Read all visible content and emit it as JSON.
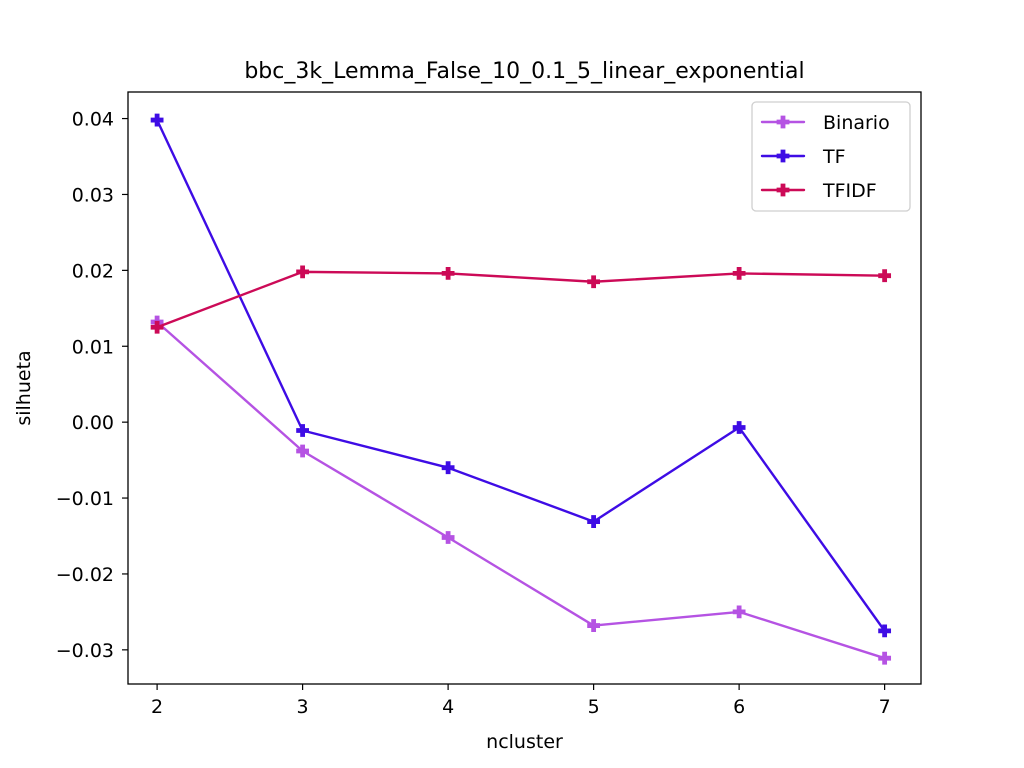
{
  "chart_data": {
    "type": "line",
    "title": "bbc_3k_Lemma_False_10_0.1_5_linear_exponential",
    "xlabel": "ncluster",
    "ylabel": "silhueta",
    "x": [
      2,
      3,
      4,
      5,
      6,
      7
    ],
    "xlim": [
      1.8,
      7.25
    ],
    "ylim": [
      -0.0345,
      0.0435
    ],
    "x_ticks": [
      2,
      3,
      4,
      5,
      6,
      7
    ],
    "y_ticks": [
      -0.03,
      -0.02,
      -0.01,
      0.0,
      0.01,
      0.02,
      0.03,
      0.04
    ],
    "x_tick_labels": [
      "2",
      "3",
      "4",
      "5",
      "6",
      "7"
    ],
    "y_tick_labels": [
      "−0.03",
      "−0.02",
      "−0.01",
      "0.00",
      "0.01",
      "0.02",
      "0.03",
      "0.04"
    ],
    "grid": false,
    "legend_position": "top-right",
    "series": [
      {
        "name": "Binario",
        "color": "#b553e3",
        "marker": "plus-filled",
        "values": [
          0.0132,
          -0.0038,
          -0.0152,
          -0.0268,
          -0.025,
          -0.0311
        ]
      },
      {
        "name": "TF",
        "color": "#3e0ce5",
        "marker": "plus-filled",
        "values": [
          0.0398,
          -0.0011,
          -0.006,
          -0.0131,
          -0.0007,
          -0.0275
        ]
      },
      {
        "name": "TFIDF",
        "color": "#cc0a57",
        "marker": "plus-filled",
        "values": [
          0.0125,
          0.0198,
          0.0196,
          0.0185,
          0.0196,
          0.0193
        ]
      }
    ]
  }
}
